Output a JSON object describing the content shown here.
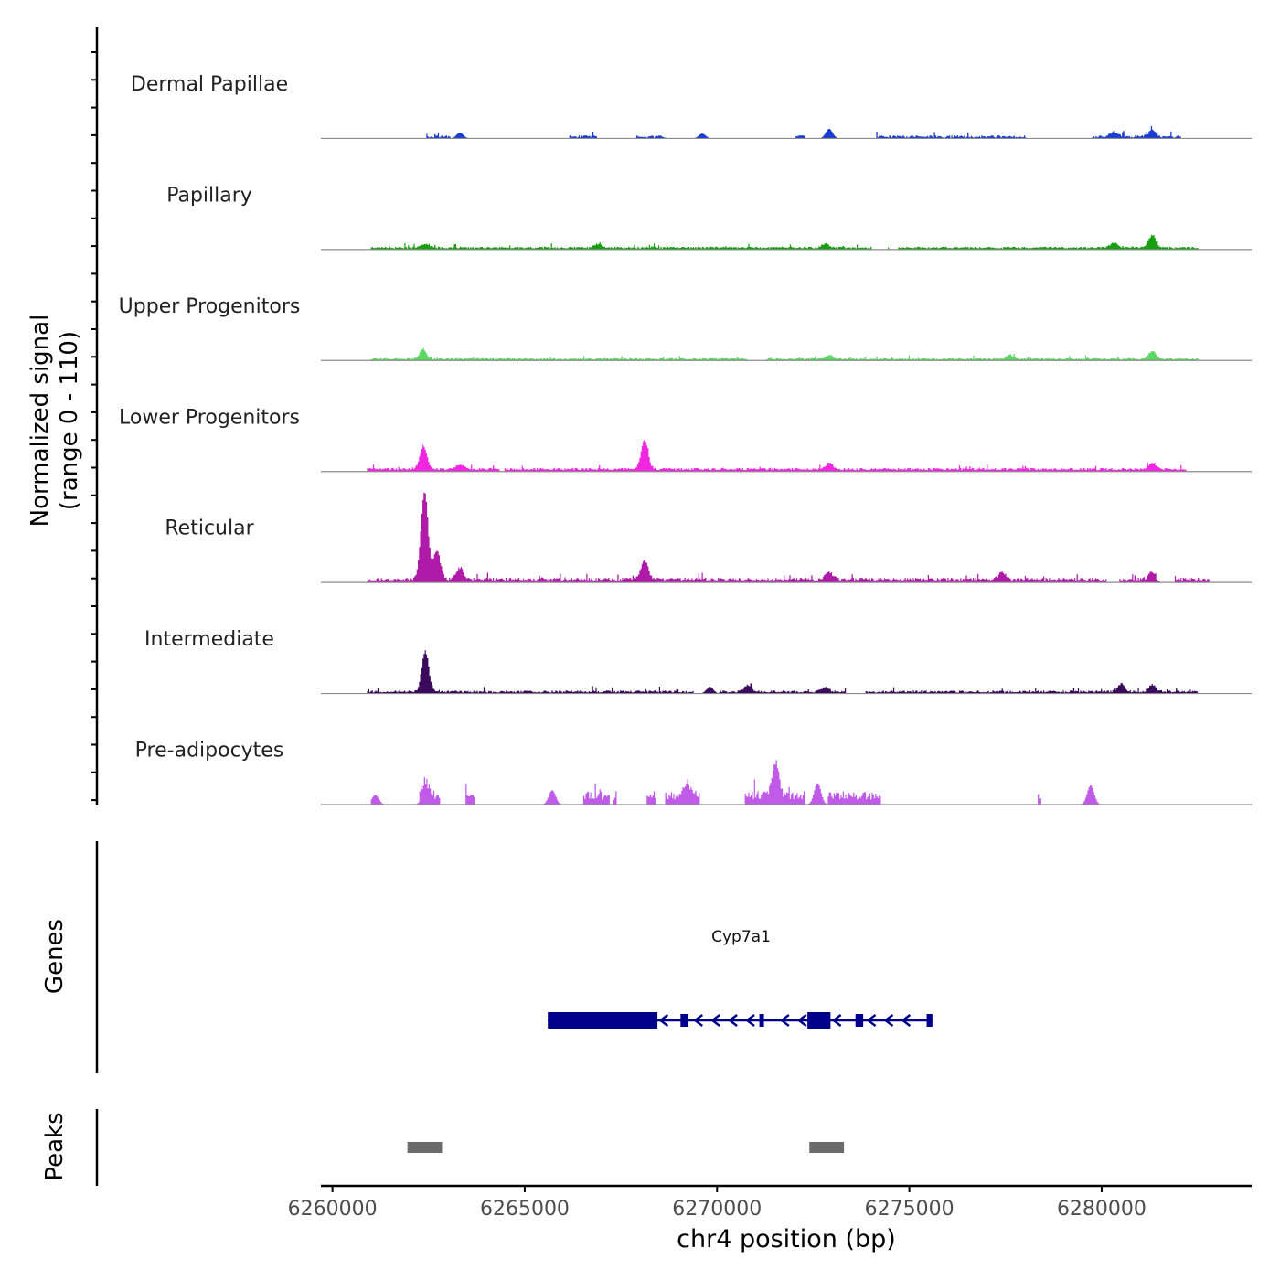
{
  "chart_data": {
    "type": "area",
    "title": "",
    "region": "chr4",
    "xlabel": "chr4 position (bp)",
    "xlim": [
      6259700,
      6283900
    ],
    "x_ticks": [
      6260000,
      6265000,
      6270000,
      6275000,
      6280000
    ],
    "x_tick_labels": [
      "6260000",
      "6265000",
      "6270000",
      "6275000",
      "6280000"
    ],
    "coverage": {
      "ylabel_line1": "Normalized signal",
      "ylabel_line2": "(range 0 - 110)",
      "ylim": [
        0,
        110
      ],
      "tracks": [
        {
          "name": "Dermal Papillae",
          "color": "#1a3ccf",
          "xmin": 6261000,
          "xmax": 6282500,
          "baseline": 0.8,
          "noise": 2.4,
          "gap_prob": 0.45,
          "seed": 11,
          "peaks": [
            {
              "x": 6263300,
              "h": 6
            },
            {
              "x": 6269600,
              "h": 5
            },
            {
              "x": 6272900,
              "h": 10
            },
            {
              "x": 6281300,
              "h": 7
            },
            {
              "x": 6280300,
              "h": 5
            }
          ]
        },
        {
          "name": "Papillary",
          "color": "#16a010",
          "xmin": 6261000,
          "xmax": 6282500,
          "baseline": 1.2,
          "noise": 1.8,
          "gap_prob": 0.05,
          "seed": 23,
          "peaks": [
            {
              "x": 6262400,
              "h": 4
            },
            {
              "x": 6266900,
              "h": 4
            },
            {
              "x": 6272800,
              "h": 4
            },
            {
              "x": 6280300,
              "h": 5
            },
            {
              "x": 6281300,
              "h": 13
            }
          ]
        },
        {
          "name": "Upper Progenitors",
          "color": "#5ad862",
          "xmin": 6261000,
          "xmax": 6282500,
          "baseline": 1.0,
          "noise": 1.6,
          "gap_prob": 0.05,
          "seed": 37,
          "peaks": [
            {
              "x": 6262350,
              "h": 11
            },
            {
              "x": 6272900,
              "h": 4
            },
            {
              "x": 6277600,
              "h": 4
            },
            {
              "x": 6281300,
              "h": 8
            }
          ]
        },
        {
          "name": "Lower Progenitors",
          "color": "#f026e0",
          "xmin": 6260900,
          "xmax": 6282200,
          "baseline": 1.5,
          "noise": 2.2,
          "gap_prob": 0.05,
          "seed": 41,
          "peaks": [
            {
              "x": 6262350,
              "h": 24
            },
            {
              "x": 6268100,
              "h": 30
            },
            {
              "x": 6272900,
              "h": 6
            },
            {
              "x": 6281300,
              "h": 7
            },
            {
              "x": 6263300,
              "h": 5
            }
          ]
        },
        {
          "name": "Reticular",
          "color": "#b01aa8",
          "xmin": 6260900,
          "xmax": 6282800,
          "baseline": 2.0,
          "noise": 3.0,
          "gap_prob": 0.05,
          "seed": 53,
          "peaks": [
            {
              "x": 6262380,
              "h": 92
            },
            {
              "x": 6262700,
              "h": 30
            },
            {
              "x": 6268100,
              "h": 20
            },
            {
              "x": 6272900,
              "h": 8
            },
            {
              "x": 6281300,
              "h": 8
            },
            {
              "x": 6263300,
              "h": 12
            },
            {
              "x": 6277400,
              "h": 7
            }
          ]
        },
        {
          "name": "Intermediate",
          "color": "#3a0a5c",
          "xmin": 6260900,
          "xmax": 6282500,
          "baseline": 1.0,
          "noise": 2.2,
          "gap_prob": 0.05,
          "seed": 67,
          "peaks": [
            {
              "x": 6262400,
              "h": 42
            },
            {
              "x": 6269800,
              "h": 7
            },
            {
              "x": 6270800,
              "h": 7
            },
            {
              "x": 6272800,
              "h": 5
            },
            {
              "x": 6280500,
              "h": 8
            },
            {
              "x": 6281300,
              "h": 7
            }
          ]
        },
        {
          "name": "Pre-adipocytes",
          "color": "#c05ae8",
          "xmin": 6261000,
          "xmax": 6280800,
          "baseline": 5.0,
          "noise": 9.0,
          "gap_prob": 0.72,
          "seed": 79,
          "peaks": [
            {
              "x": 6271500,
              "h": 36
            },
            {
              "x": 6272600,
              "h": 22
            },
            {
              "x": 6279700,
              "h": 20
            },
            {
              "x": 6265700,
              "h": 15
            },
            {
              "x": 6262400,
              "h": 15
            },
            {
              "x": 6269200,
              "h": 13
            },
            {
              "x": 6261100,
              "h": 10
            }
          ]
        }
      ]
    },
    "genes": {
      "ylabel": "Genes",
      "gene_name": "Cyp7a1",
      "color": "#00008b",
      "strand": "-",
      "start": 6265600,
      "end": 6275600,
      "exons": [
        {
          "start": 6265600,
          "end": 6268450,
          "thick": true
        },
        {
          "start": 6269050,
          "end": 6269250,
          "thick": false
        },
        {
          "start": 6271100,
          "end": 6271200,
          "thick": false
        },
        {
          "start": 6272350,
          "end": 6272950,
          "thick": true
        },
        {
          "start": 6273600,
          "end": 6273800,
          "thick": false
        },
        {
          "start": 6275450,
          "end": 6275600,
          "thick": false
        }
      ]
    },
    "peaks": {
      "ylabel": "Peaks",
      "color": "#6b6b6b",
      "regions": [
        {
          "start": 6261950,
          "end": 6262850
        },
        {
          "start": 6272400,
          "end": 6273300
        }
      ]
    }
  }
}
